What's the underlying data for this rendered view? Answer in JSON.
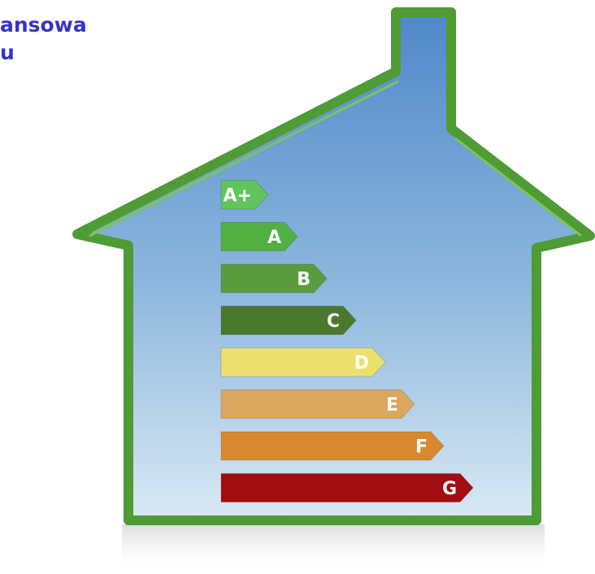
{
  "heading": {
    "lines": [
      "ansowa",
      "u"
    ]
  },
  "labels": [
    {
      "text": "A+",
      "color": "#62c55c"
    },
    {
      "text": "A",
      "color": "#52b043"
    },
    {
      "text": "B",
      "color": "#5a9c3d"
    },
    {
      "text": "C",
      "color": "#4a782f"
    },
    {
      "text": "D",
      "color": "#ece06c"
    },
    {
      "text": "E",
      "color": "#dba65e"
    },
    {
      "text": "F",
      "color": "#d8892f"
    },
    {
      "text": "G",
      "color": "#a10d11"
    }
  ]
}
